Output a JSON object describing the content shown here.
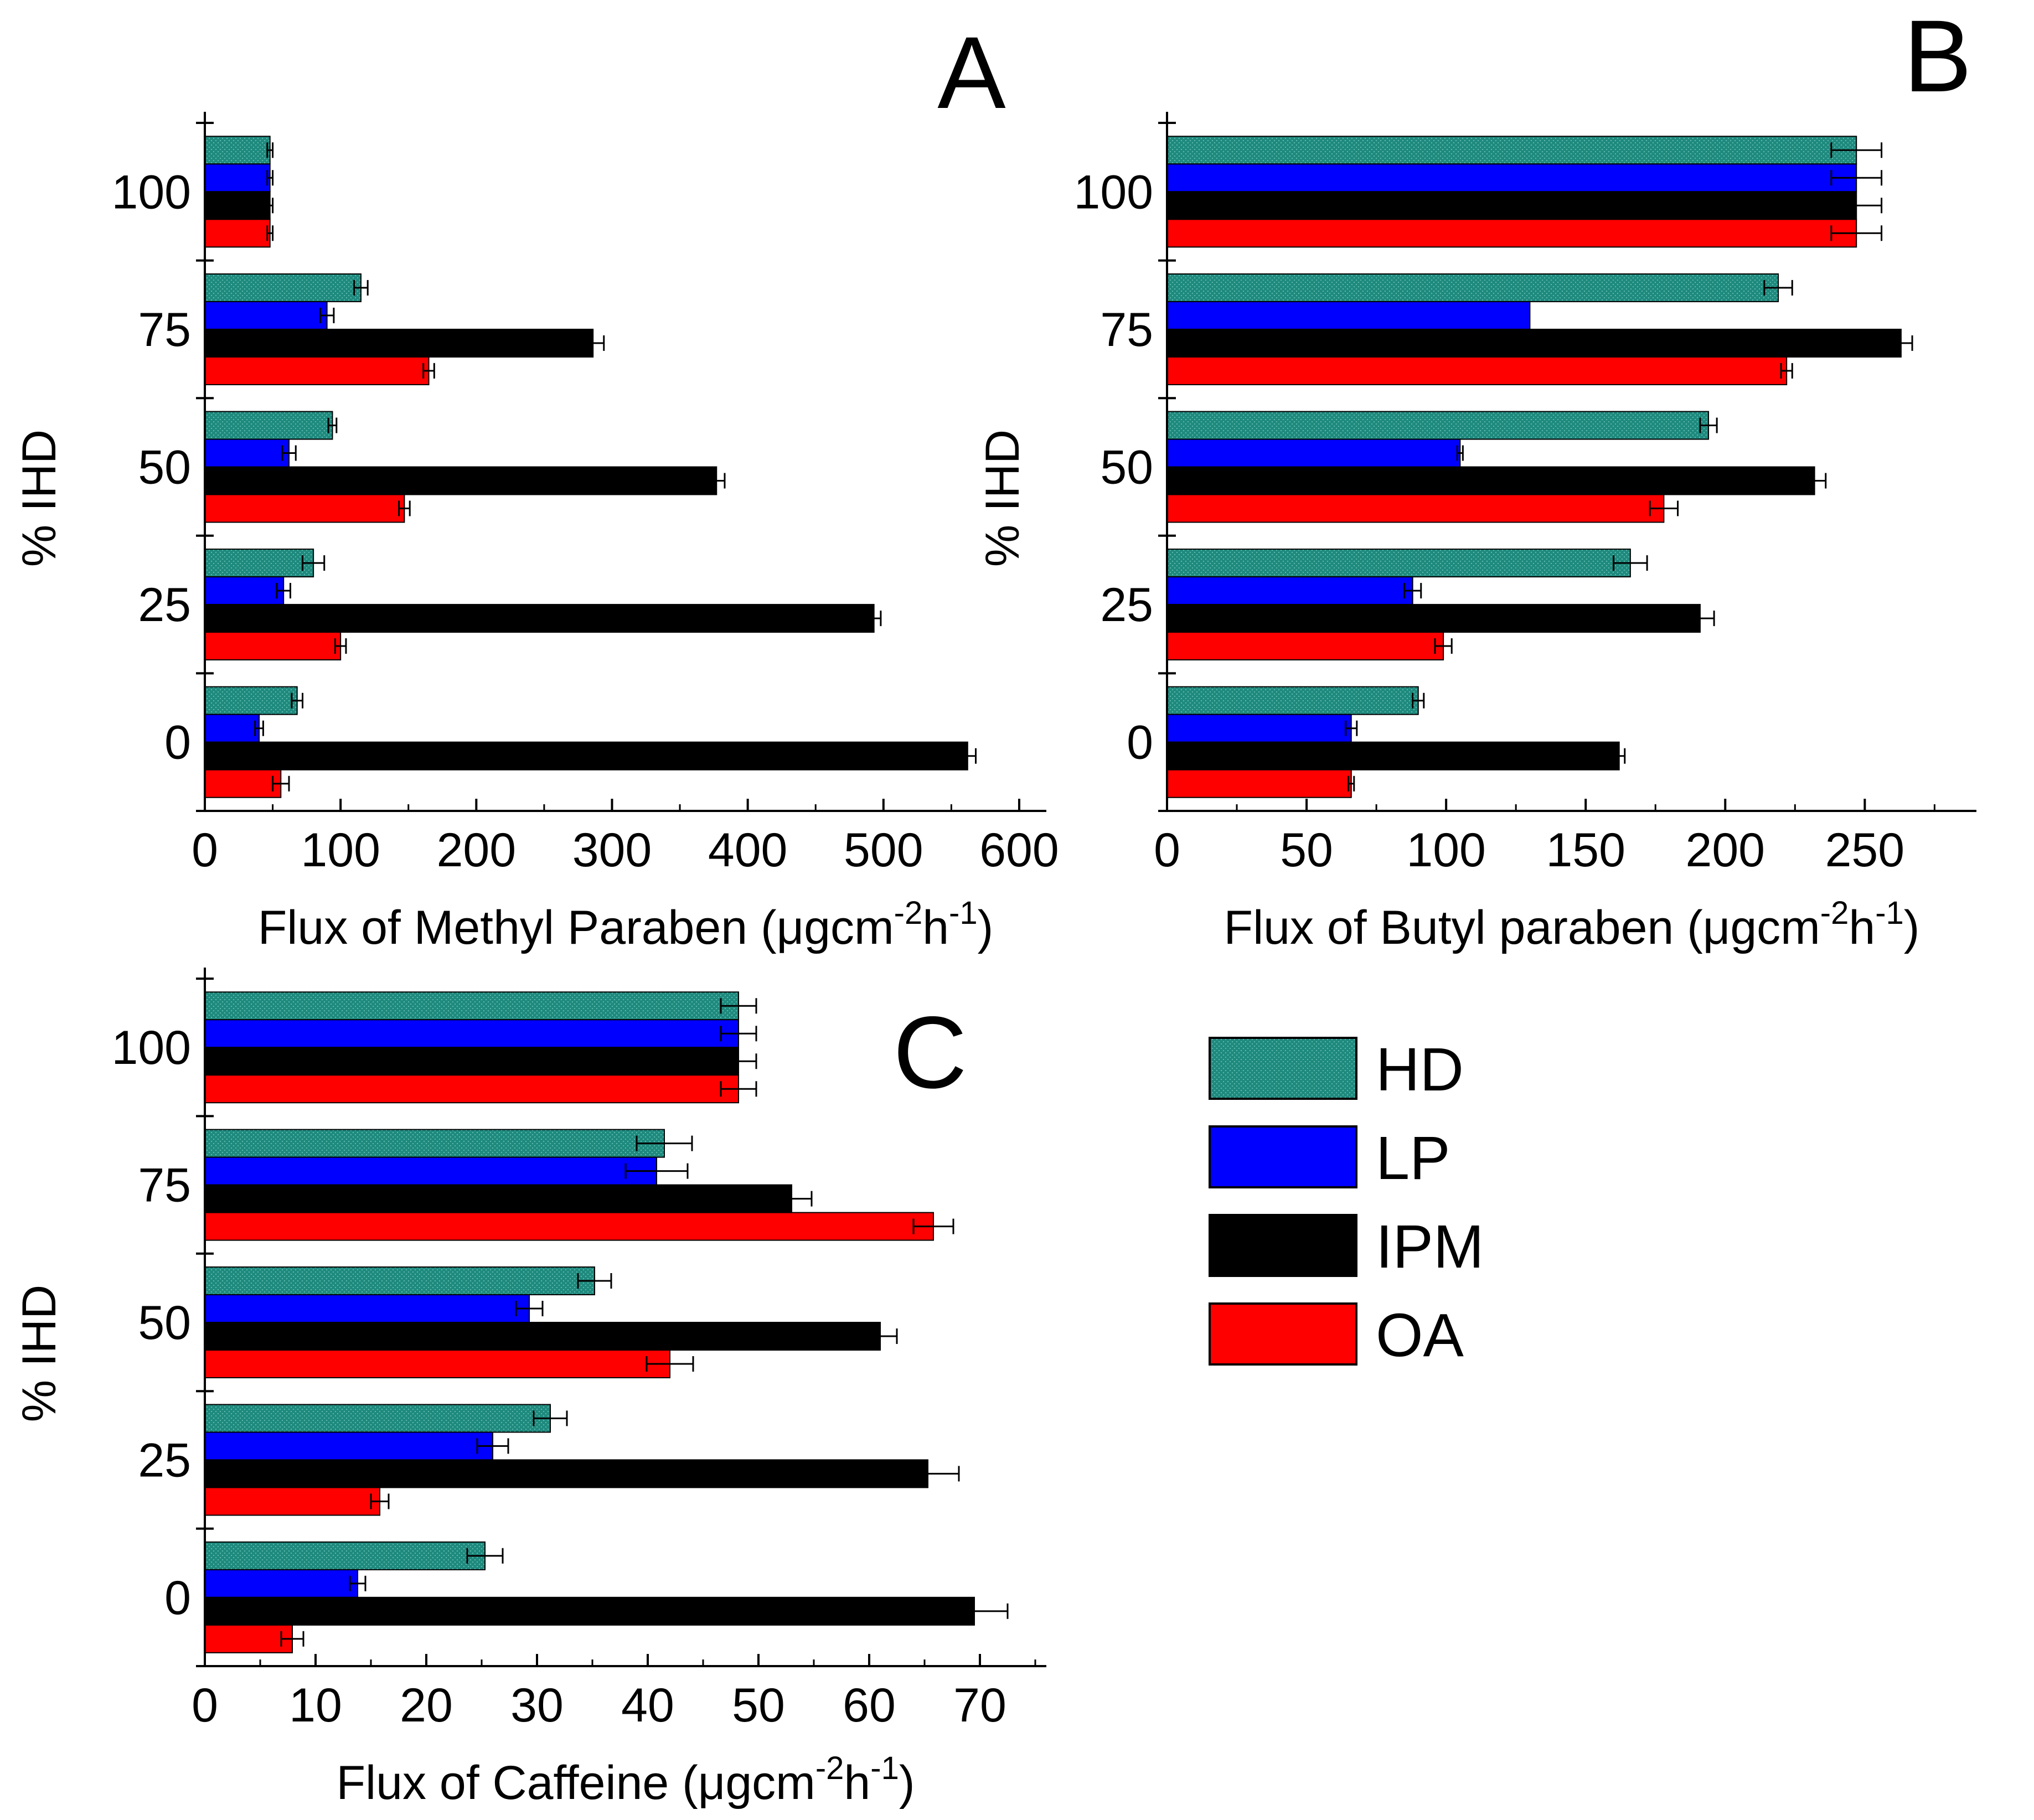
{
  "legend": {
    "items": [
      {
        "key": "HD",
        "label": "HD",
        "color": "#1f8a7e",
        "pattern": true
      },
      {
        "key": "LP",
        "label": "LP",
        "color": "#0000ff",
        "pattern": false
      },
      {
        "key": "IPM",
        "label": "IPM",
        "color": "#000000",
        "pattern": false
      },
      {
        "key": "OA",
        "label": "OA",
        "color": "#ff0000",
        "pattern": false
      }
    ]
  },
  "chart_data": [
    {
      "type": "bar",
      "orientation": "horizontal",
      "letter": "A",
      "title": "",
      "ylabel": "% IHD",
      "xlabel_main": "Flux of Methyl Paraben (",
      "xlabel_unit": "μgcm",
      "xlabel_sup1": "-2",
      "xlabel_h": "h",
      "xlabel_sup2": "-1",
      "xlabel_close": ")",
      "categories": [
        "100",
        "75",
        "50",
        "25",
        "0"
      ],
      "xlim": [
        0,
        620
      ],
      "xticks": [
        0,
        100,
        200,
        300,
        400,
        500,
        600
      ],
      "series": [
        {
          "name": "HD",
          "values": [
            48,
            115,
            94,
            80,
            68
          ],
          "errors": [
            2,
            5,
            3,
            8,
            4
          ]
        },
        {
          "name": "LP",
          "values": [
            48,
            90,
            62,
            58,
            40
          ],
          "errors": [
            2,
            5,
            5,
            5,
            3
          ]
        },
        {
          "name": "IPM",
          "values": [
            48,
            286,
            377,
            493,
            562
          ],
          "errors": [
            2,
            8,
            6,
            5,
            6
          ]
        },
        {
          "name": "OA",
          "values": [
            48,
            165,
            147,
            100,
            56
          ],
          "errors": [
            2,
            4,
            4,
            4,
            6
          ]
        }
      ]
    },
    {
      "type": "bar",
      "orientation": "horizontal",
      "letter": "B",
      "title": "",
      "ylabel": "% IHD",
      "xlabel_main": "Flux of Butyl paraben (",
      "xlabel_unit": "μgcm",
      "xlabel_sup1": "-2",
      "xlabel_h": "h",
      "xlabel_sup2": "-1",
      "xlabel_close": ")",
      "categories": [
        "100",
        "75",
        "50",
        "25",
        "0"
      ],
      "xlim": [
        0,
        290
      ],
      "xticks": [
        0,
        50,
        100,
        150,
        200,
        250
      ],
      "series": [
        {
          "name": "HD",
          "values": [
            247,
            219,
            194,
            166,
            90
          ],
          "errors": [
            9,
            5,
            3,
            6,
            2
          ]
        },
        {
          "name": "LP",
          "values": [
            247,
            130,
            105,
            88,
            66
          ],
          "errors": [
            9,
            0,
            1,
            3,
            2
          ]
        },
        {
          "name": "IPM",
          "values": [
            247,
            263,
            232,
            191,
            162
          ],
          "errors": [
            9,
            4,
            4,
            5,
            2
          ]
        },
        {
          "name": "OA",
          "values": [
            247,
            222,
            178,
            99,
            66
          ],
          "errors": [
            9,
            2,
            5,
            3,
            1
          ]
        }
      ]
    },
    {
      "type": "bar",
      "orientation": "horizontal",
      "letter": "C",
      "title": "",
      "ylabel": "% IHD",
      "xlabel_main": "Flux of Caffeine (",
      "xlabel_unit": "μgcm",
      "xlabel_sup1": "-2",
      "xlabel_h": "h",
      "xlabel_sup2": "-1",
      "xlabel_close": ")",
      "categories": [
        "100",
        "75",
        "50",
        "25",
        "0"
      ],
      "xlim": [
        0,
        76
      ],
      "xticks": [
        0,
        10,
        20,
        30,
        40,
        50,
        60,
        70
      ],
      "series": [
        {
          "name": "HD",
          "values": [
            48.2,
            41.5,
            35.2,
            31.2,
            25.3
          ],
          "errors": [
            1.6,
            2.5,
            1.5,
            1.5,
            1.6
          ]
        },
        {
          "name": "LP",
          "values": [
            48.2,
            40.8,
            29.3,
            26.0,
            13.8
          ],
          "errors": [
            1.6,
            2.8,
            1.2,
            1.4,
            0.7
          ]
        },
        {
          "name": "IPM",
          "values": [
            48.2,
            53.0,
            61.0,
            65.3,
            69.5
          ],
          "errors": [
            1.6,
            1.8,
            1.5,
            2.8,
            3.0
          ]
        },
        {
          "name": "OA",
          "values": [
            48.2,
            65.8,
            42.0,
            15.8,
            7.9
          ],
          "errors": [
            1.6,
            1.8,
            2.1,
            0.8,
            1.0
          ]
        }
      ]
    }
  ]
}
